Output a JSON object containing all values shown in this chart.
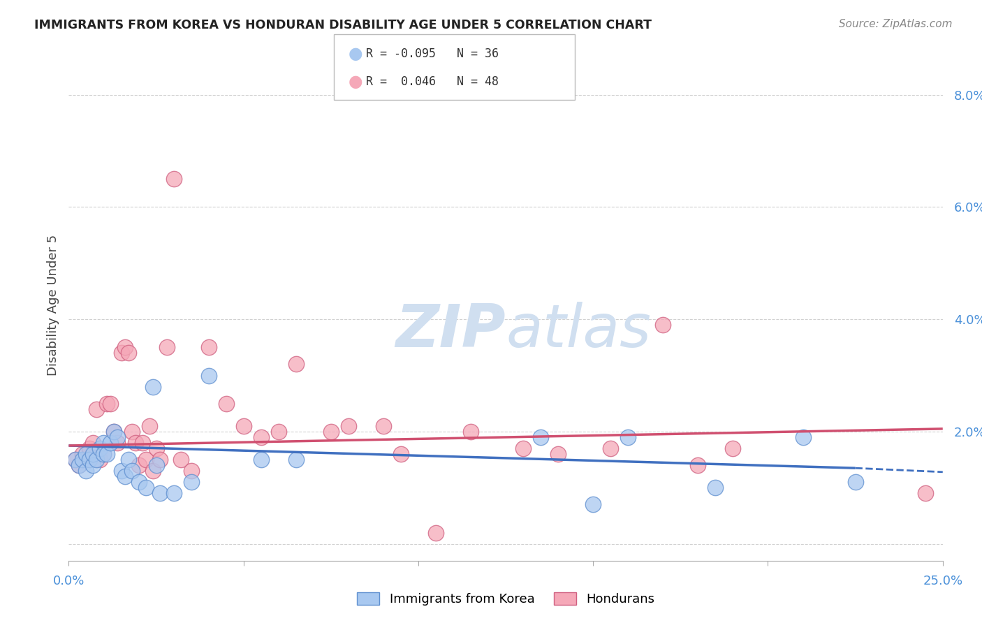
{
  "title": "IMMIGRANTS FROM KOREA VS HONDURAN DISABILITY AGE UNDER 5 CORRELATION CHART",
  "source": "Source: ZipAtlas.com",
  "ylabel": "Disability Age Under 5",
  "xlim": [
    0.0,
    25.0
  ],
  "ylim": [
    -0.3,
    8.8
  ],
  "ytick_vals": [
    0.0,
    2.0,
    4.0,
    6.0,
    8.0
  ],
  "ytick_labels": [
    "",
    "2.0%",
    "4.0%",
    "6.0%",
    "8.0%"
  ],
  "xtick_vals": [
    0.0,
    5.0,
    10.0,
    15.0,
    20.0,
    25.0
  ],
  "blue_R": "-0.095",
  "blue_N": "36",
  "pink_R": "0.046",
  "pink_N": "48",
  "blue_color": "#a8c8f0",
  "pink_color": "#f5a8b8",
  "blue_edge_color": "#6090d0",
  "pink_edge_color": "#d06080",
  "blue_line_color": "#4070c0",
  "pink_line_color": "#d05070",
  "background_color": "#ffffff",
  "grid_color": "#cccccc",
  "watermark_color": "#d0dff0",
  "blue_scatter_x": [
    0.2,
    0.3,
    0.4,
    0.5,
    0.5,
    0.6,
    0.7,
    0.7,
    0.8,
    0.9,
    1.0,
    1.0,
    1.1,
    1.2,
    1.3,
    1.4,
    1.5,
    1.6,
    1.7,
    1.8,
    2.0,
    2.2,
    2.4,
    2.5,
    2.6,
    3.0,
    3.5,
    4.0,
    5.5,
    6.5,
    13.5,
    15.0,
    16.0,
    18.5,
    21.0,
    22.5
  ],
  "blue_scatter_y": [
    1.5,
    1.4,
    1.5,
    1.6,
    1.3,
    1.5,
    1.4,
    1.6,
    1.5,
    1.7,
    1.8,
    1.6,
    1.6,
    1.8,
    2.0,
    1.9,
    1.3,
    1.2,
    1.5,
    1.3,
    1.1,
    1.0,
    2.8,
    1.4,
    0.9,
    0.9,
    1.1,
    3.0,
    1.5,
    1.5,
    1.9,
    0.7,
    1.9,
    1.0,
    1.9,
    1.1
  ],
  "pink_scatter_x": [
    0.2,
    0.3,
    0.4,
    0.5,
    0.6,
    0.7,
    0.8,
    0.9,
    1.0,
    1.1,
    1.2,
    1.3,
    1.4,
    1.5,
    1.6,
    1.7,
    1.8,
    1.9,
    2.0,
    2.1,
    2.2,
    2.3,
    2.4,
    2.5,
    2.6,
    2.8,
    3.0,
    3.2,
    3.5,
    4.0,
    4.5,
    5.0,
    5.5,
    6.0,
    6.5,
    7.5,
    8.0,
    9.0,
    9.5,
    10.5,
    11.5,
    13.0,
    14.0,
    15.5,
    17.0,
    18.0,
    19.0,
    24.5
  ],
  "pink_scatter_y": [
    1.5,
    1.4,
    1.6,
    1.5,
    1.7,
    1.8,
    2.4,
    1.5,
    1.6,
    2.5,
    2.5,
    2.0,
    1.8,
    3.4,
    3.5,
    3.4,
    2.0,
    1.8,
    1.4,
    1.8,
    1.5,
    2.1,
    1.3,
    1.7,
    1.5,
    3.5,
    6.5,
    1.5,
    1.3,
    3.5,
    2.5,
    2.1,
    1.9,
    2.0,
    3.2,
    2.0,
    2.1,
    2.1,
    1.6,
    0.2,
    2.0,
    1.7,
    1.6,
    1.7,
    3.9,
    1.4,
    1.7,
    0.9
  ],
  "blue_line_x0": 0.0,
  "blue_line_y0": 1.75,
  "blue_line_x1": 22.5,
  "blue_line_y1": 1.35,
  "blue_dash_x0": 22.5,
  "blue_dash_y0": 1.35,
  "blue_dash_x1": 25.0,
  "blue_dash_y1": 1.28,
  "pink_line_x0": 0.0,
  "pink_line_y0": 1.75,
  "pink_line_x1": 25.0,
  "pink_line_y1": 2.05
}
